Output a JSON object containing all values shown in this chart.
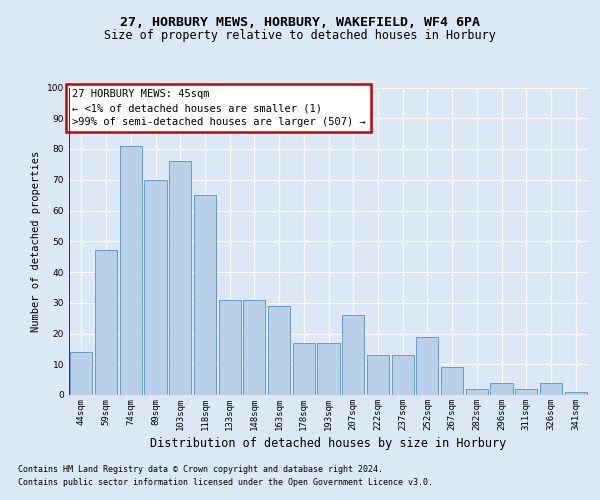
{
  "title1": "27, HORBURY MEWS, HORBURY, WAKEFIELD, WF4 6PA",
  "title2": "Size of property relative to detached houses in Horbury",
  "xlabel": "Distribution of detached houses by size in Horbury",
  "ylabel": "Number of detached properties",
  "categories": [
    "44sqm",
    "59sqm",
    "74sqm",
    "89sqm",
    "103sqm",
    "118sqm",
    "133sqm",
    "148sqm",
    "163sqm",
    "178sqm",
    "193sqm",
    "207sqm",
    "222sqm",
    "237sqm",
    "252sqm",
    "267sqm",
    "282sqm",
    "296sqm",
    "311sqm",
    "326sqm",
    "341sqm"
  ],
  "values": [
    14,
    47,
    81,
    70,
    76,
    65,
    31,
    31,
    29,
    17,
    17,
    26,
    13,
    13,
    19,
    9,
    2,
    4,
    2,
    4,
    1
  ],
  "bar_color": "#b8d0e8",
  "bar_edge_color": "#6699cc",
  "annotation_line1": "27 HORBURY MEWS: 45sqm",
  "annotation_line2": "← <1% of detached houses are smaller (1)",
  "annotation_line3": ">99% of semi-detached houses are larger (507) →",
  "annotation_box_color": "white",
  "annotation_box_edge": "#cc0000",
  "footer1": "Contains HM Land Registry data © Crown copyright and database right 2024.",
  "footer2": "Contains public sector information licensed under the Open Government Licence v3.0.",
  "bg_color": "#dce8f5",
  "plot_bg_color": "#dce8f5",
  "ylim": [
    0,
    100
  ],
  "yticks": [
    0,
    10,
    20,
    30,
    40,
    50,
    60,
    70,
    80,
    90,
    100
  ],
  "title1_fontsize": 9.5,
  "title2_fontsize": 8.5,
  "xlabel_fontsize": 8.5,
  "ylabel_fontsize": 7.5,
  "tick_fontsize": 6.5,
  "footer_fontsize": 6.0,
  "annot_fontsize": 7.5
}
